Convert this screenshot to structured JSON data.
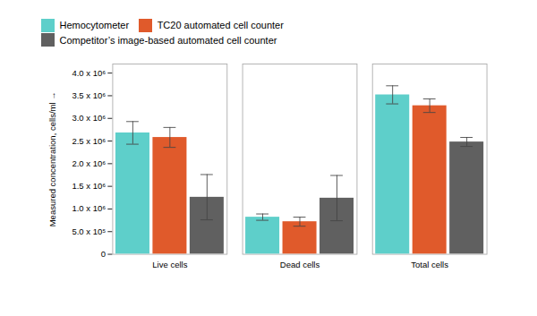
{
  "chart_data": {
    "type": "bar",
    "categories": [
      "Live cells",
      "Dead cells",
      "Total cells"
    ],
    "series": [
      {
        "name": "Hemocytometer",
        "color": "#5ecfca",
        "values": [
          2680000,
          820000,
          3520000
        ],
        "errors": [
          250000,
          70000,
          200000
        ]
      },
      {
        "name": "TC20 automated cell counter",
        "color": "#e05a2b",
        "values": [
          2580000,
          720000,
          3280000
        ],
        "errors": [
          220000,
          100000,
          150000
        ]
      },
      {
        "name": "Competitor’s image-based automated cell counter",
        "color": "#606060",
        "values": [
          1260000,
          1240000,
          2480000
        ],
        "errors": [
          500000,
          500000,
          100000
        ]
      }
    ],
    "ylabel": "Measured concentration, cells/ml",
    "ylim": [
      0,
      4200000
    ],
    "yticks": [
      0,
      {
        "value": 500000,
        "label": "5.0 x 10⁵"
      },
      {
        "value": 1000000,
        "label": "1.0 x 10⁶"
      },
      {
        "value": 1500000,
        "label": "1.5 x 10⁶"
      },
      {
        "value": 2000000,
        "label": "2.0 x 10⁶"
      },
      {
        "value": 2500000,
        "label": "2.5 x 10⁶"
      },
      {
        "value": 3000000,
        "label": "3.0 x 10⁶"
      },
      {
        "value": 3500000,
        "label": "3.5 x 10⁶"
      },
      {
        "value": 4000000,
        "label": "4.0 x 10⁶"
      }
    ],
    "grid": false,
    "legend": "top-left"
  }
}
